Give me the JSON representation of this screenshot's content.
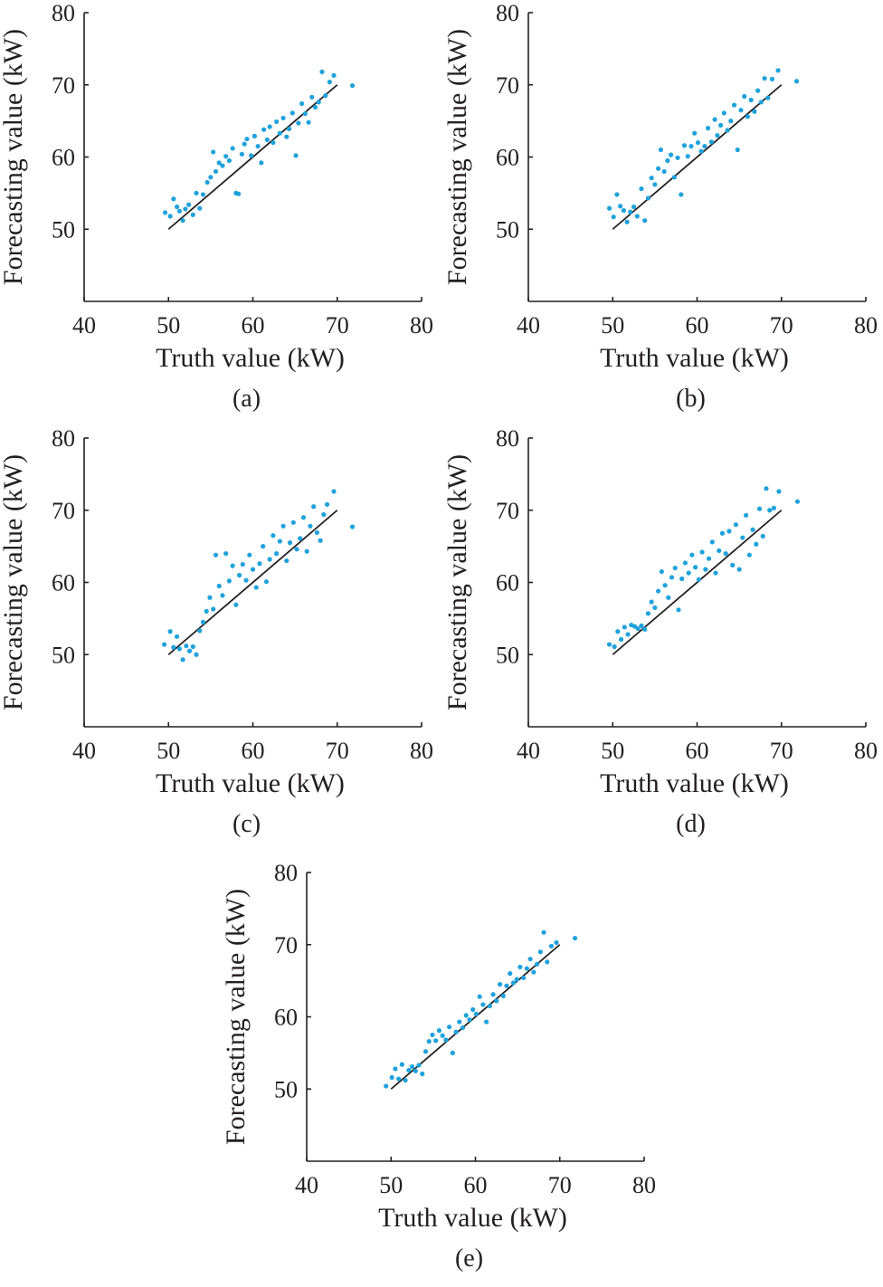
{
  "figure": {
    "panels": [
      {
        "id": "a",
        "label": "(a)"
      },
      {
        "id": "b",
        "label": "(b)"
      },
      {
        "id": "c",
        "label": "(c)"
      },
      {
        "id": "d",
        "label": "(d)"
      },
      {
        "id": "e",
        "label": "(e)"
      }
    ]
  },
  "colors": {
    "points": "#1ea2dc",
    "line": "#231f20",
    "axes": "#231f20"
  },
  "chart_data": [
    {
      "type": "scatter",
      "panel_label": "(a)",
      "xlabel": "Truth value (kW)",
      "ylabel": "Forecasting value (kW)",
      "xlim": [
        40,
        80
      ],
      "ylim": [
        40,
        80
      ],
      "xticks": [
        40,
        50,
        60,
        70,
        80
      ],
      "yticks": [
        50,
        60,
        70,
        80
      ],
      "grid": false,
      "reference_line": {
        "x": [
          50,
          70
        ],
        "y": [
          50,
          70
        ]
      },
      "points": [
        [
          49.6,
          52.3
        ],
        [
          50.2,
          51.8
        ],
        [
          50.6,
          54.2
        ],
        [
          51.0,
          53.1
        ],
        [
          51.3,
          52.5
        ],
        [
          51.7,
          51.2
        ],
        [
          52.0,
          52.8
        ],
        [
          52.4,
          53.4
        ],
        [
          52.9,
          52.0
        ],
        [
          53.3,
          55.0
        ],
        [
          53.7,
          52.9
        ],
        [
          54.1,
          54.8
        ],
        [
          54.6,
          56.5
        ],
        [
          55.0,
          57.2
        ],
        [
          55.3,
          60.7
        ],
        [
          55.6,
          58.0
        ],
        [
          56.0,
          59.2
        ],
        [
          56.4,
          58.8
        ],
        [
          56.8,
          60.1
        ],
        [
          57.2,
          59.5
        ],
        [
          57.6,
          61.2
        ],
        [
          58.0,
          55.0
        ],
        [
          58.3,
          54.9
        ],
        [
          58.7,
          60.4
        ],
        [
          59.0,
          61.8
        ],
        [
          59.3,
          62.5
        ],
        [
          59.8,
          60.2
        ],
        [
          60.2,
          62.9
        ],
        [
          60.6,
          61.5
        ],
        [
          61.0,
          59.2
        ],
        [
          61.3,
          63.8
        ],
        [
          61.7,
          62.4
        ],
        [
          62.0,
          64.2
        ],
        [
          62.4,
          62.0
        ],
        [
          62.8,
          64.9
        ],
        [
          63.2,
          63.3
        ],
        [
          63.6,
          65.4
        ],
        [
          64.0,
          62.8
        ],
        [
          64.3,
          63.9
        ],
        [
          64.7,
          66.1
        ],
        [
          65.1,
          60.2
        ],
        [
          65.4,
          64.7
        ],
        [
          65.8,
          67.4
        ],
        [
          66.2,
          66.0
        ],
        [
          66.6,
          64.8
        ],
        [
          67.0,
          68.3
        ],
        [
          67.4,
          66.9
        ],
        [
          67.8,
          67.6
        ],
        [
          68.2,
          71.8
        ],
        [
          68.6,
          68.5
        ],
        [
          69.1,
          70.4
        ],
        [
          69.6,
          71.3
        ],
        [
          71.8,
          69.9
        ]
      ]
    },
    {
      "type": "scatter",
      "panel_label": "(b)",
      "xlabel": "Truth value (kW)",
      "ylabel": "Forecasting value (kW)",
      "xlim": [
        40,
        80
      ],
      "ylim": [
        40,
        80
      ],
      "xticks": [
        40,
        50,
        60,
        70,
        80
      ],
      "yticks": [
        50,
        60,
        70,
        80
      ],
      "grid": false,
      "reference_line": {
        "x": [
          50,
          70
        ],
        "y": [
          50,
          70
        ]
      },
      "points": [
        [
          49.6,
          52.9
        ],
        [
          50.1,
          51.7
        ],
        [
          50.5,
          54.8
        ],
        [
          50.9,
          53.2
        ],
        [
          51.3,
          52.6
        ],
        [
          51.7,
          51.0
        ],
        [
          52.1,
          52.4
        ],
        [
          52.5,
          53.1
        ],
        [
          52.9,
          51.8
        ],
        [
          53.4,
          55.6
        ],
        [
          53.8,
          51.2
        ],
        [
          54.2,
          54.3
        ],
        [
          54.6,
          57.1
        ],
        [
          55.0,
          56.2
        ],
        [
          55.4,
          58.4
        ],
        [
          55.7,
          61.0
        ],
        [
          56.1,
          58.0
        ],
        [
          56.5,
          59.5
        ],
        [
          56.9,
          60.3
        ],
        [
          57.3,
          57.2
        ],
        [
          57.7,
          59.9
        ],
        [
          58.1,
          54.8
        ],
        [
          58.5,
          61.6
        ],
        [
          58.9,
          60.1
        ],
        [
          59.3,
          61.5
        ],
        [
          59.7,
          63.3
        ],
        [
          60.1,
          62.0
        ],
        [
          60.5,
          60.8
        ],
        [
          60.9,
          61.5
        ],
        [
          61.3,
          64.0
        ],
        [
          61.7,
          62.1
        ],
        [
          62.1,
          65.2
        ],
        [
          62.4,
          63.0
        ],
        [
          62.8,
          64.4
        ],
        [
          63.2,
          66.1
        ],
        [
          63.6,
          63.7
        ],
        [
          64.0,
          65.0
        ],
        [
          64.4,
          67.2
        ],
        [
          64.8,
          61.0
        ],
        [
          65.2,
          66.5
        ],
        [
          65.6,
          68.4
        ],
        [
          66.0,
          65.6
        ],
        [
          66.4,
          67.9
        ],
        [
          66.8,
          66.3
        ],
        [
          67.2,
          69.2
        ],
        [
          67.6,
          67.6
        ],
        [
          68.0,
          70.9
        ],
        [
          68.4,
          68.2
        ],
        [
          68.9,
          70.8
        ],
        [
          69.6,
          72.0
        ],
        [
          71.8,
          70.5
        ]
      ]
    },
    {
      "type": "scatter",
      "panel_label": "(c)",
      "xlabel": "Truth value (kW)",
      "ylabel": "Forecasting value (kW)",
      "xlim": [
        40,
        80
      ],
      "ylim": [
        40,
        80
      ],
      "xticks": [
        40,
        50,
        60,
        70,
        80
      ],
      "yticks": [
        50,
        60,
        70,
        80
      ],
      "grid": false,
      "reference_line": {
        "x": [
          50,
          70
        ],
        "y": [
          50,
          70
        ]
      },
      "points": [
        [
          49.5,
          51.4
        ],
        [
          50.2,
          53.2
        ],
        [
          50.6,
          51.0
        ],
        [
          51.0,
          52.5
        ],
        [
          51.3,
          50.8
        ],
        [
          51.7,
          49.3
        ],
        [
          52.1,
          51.2
        ],
        [
          52.5,
          50.5
        ],
        [
          52.9,
          51.1
        ],
        [
          53.3,
          50.0
        ],
        [
          53.7,
          53.3
        ],
        [
          54.1,
          54.5
        ],
        [
          54.5,
          56.0
        ],
        [
          54.9,
          57.9
        ],
        [
          55.3,
          56.3
        ],
        [
          55.6,
          63.8
        ],
        [
          56.0,
          59.5
        ],
        [
          56.4,
          58.2
        ],
        [
          56.8,
          64.0
        ],
        [
          57.2,
          60.2
        ],
        [
          57.6,
          62.3
        ],
        [
          58.0,
          56.9
        ],
        [
          58.4,
          61.0
        ],
        [
          58.8,
          62.5
        ],
        [
          59.2,
          60.3
        ],
        [
          59.6,
          63.8
        ],
        [
          60.0,
          61.8
        ],
        [
          60.4,
          59.3
        ],
        [
          60.8,
          62.6
        ],
        [
          61.2,
          65.0
        ],
        [
          61.6,
          60.1
        ],
        [
          62.0,
          63.2
        ],
        [
          62.4,
          66.5
        ],
        [
          62.8,
          64.0
        ],
        [
          63.2,
          65.7
        ],
        [
          63.6,
          67.8
        ],
        [
          64.0,
          63.0
        ],
        [
          64.4,
          65.5
        ],
        [
          64.8,
          68.3
        ],
        [
          65.2,
          64.6
        ],
        [
          65.6,
          66.1
        ],
        [
          66.0,
          69.0
        ],
        [
          66.4,
          64.3
        ],
        [
          66.8,
          67.8
        ],
        [
          67.2,
          70.5
        ],
        [
          67.6,
          66.9
        ],
        [
          68.0,
          65.8
        ],
        [
          68.4,
          69.4
        ],
        [
          68.8,
          70.8
        ],
        [
          69.6,
          72.6
        ],
        [
          71.8,
          67.7
        ]
      ]
    },
    {
      "type": "scatter",
      "panel_label": "(d)",
      "xlabel": "Truth value (kW)",
      "ylabel": "Forecasting value (kW)",
      "xlim": [
        40,
        80
      ],
      "ylim": [
        40,
        80
      ],
      "xticks": [
        40,
        50,
        60,
        70,
        80
      ],
      "yticks": [
        50,
        60,
        70,
        80
      ],
      "grid": false,
      "reference_line": {
        "x": [
          50,
          70
        ],
        "y": [
          50,
          70
        ]
      },
      "points": [
        [
          49.6,
          51.4
        ],
        [
          50.2,
          51.1
        ],
        [
          50.6,
          53.2
        ],
        [
          51.0,
          52.1
        ],
        [
          51.4,
          53.8
        ],
        [
          51.8,
          52.8
        ],
        [
          52.2,
          54.1
        ],
        [
          52.6,
          53.9
        ],
        [
          53.0,
          53.6
        ],
        [
          53.4,
          54.0
        ],
        [
          53.8,
          53.5
        ],
        [
          54.2,
          55.7
        ],
        [
          54.6,
          57.3
        ],
        [
          55.0,
          56.5
        ],
        [
          55.4,
          58.8
        ],
        [
          55.8,
          61.5
        ],
        [
          56.2,
          59.6
        ],
        [
          56.6,
          57.9
        ],
        [
          57.0,
          60.7
        ],
        [
          57.4,
          62.0
        ],
        [
          57.8,
          56.2
        ],
        [
          58.2,
          60.5
        ],
        [
          58.6,
          62.7
        ],
        [
          59.0,
          61.3
        ],
        [
          59.4,
          63.8
        ],
        [
          59.8,
          62.1
        ],
        [
          60.2,
          60.4
        ],
        [
          60.6,
          64.2
        ],
        [
          61.0,
          61.8
        ],
        [
          61.4,
          63.3
        ],
        [
          61.8,
          65.6
        ],
        [
          62.2,
          61.3
        ],
        [
          62.6,
          64.4
        ],
        [
          63.0,
          66.8
        ],
        [
          63.4,
          64.0
        ],
        [
          63.8,
          67.1
        ],
        [
          64.2,
          62.4
        ],
        [
          64.6,
          68.0
        ],
        [
          65.0,
          61.8
        ],
        [
          65.4,
          66.2
        ],
        [
          65.8,
          69.3
        ],
        [
          66.2,
          63.8
        ],
        [
          66.6,
          67.3
        ],
        [
          67.0,
          65.3
        ],
        [
          67.4,
          70.2
        ],
        [
          67.8,
          66.4
        ],
        [
          68.2,
          73.0
        ],
        [
          68.6,
          70.0
        ],
        [
          69.1,
          70.3
        ],
        [
          69.7,
          72.6
        ],
        [
          71.9,
          71.2
        ]
      ]
    },
    {
      "type": "scatter",
      "panel_label": "(e)",
      "xlabel": "Truth value (kW)",
      "ylabel": "Forecasting value (kW)",
      "xlim": [
        40,
        80
      ],
      "ylim": [
        40,
        80
      ],
      "xticks": [
        40,
        50,
        60,
        70,
        80
      ],
      "yticks": [
        50,
        60,
        70,
        80
      ],
      "grid": false,
      "reference_line": {
        "x": [
          50,
          70
        ],
        "y": [
          50,
          70
        ]
      },
      "points": [
        [
          49.4,
          50.4
        ],
        [
          50.1,
          51.6
        ],
        [
          50.5,
          52.8
        ],
        [
          50.9,
          51.4
        ],
        [
          51.3,
          53.4
        ],
        [
          51.7,
          51.2
        ],
        [
          52.1,
          52.6
        ],
        [
          52.5,
          53.1
        ],
        [
          52.9,
          52.5
        ],
        [
          53.3,
          53.3
        ],
        [
          53.7,
          52.1
        ],
        [
          54.1,
          55.2
        ],
        [
          54.5,
          56.6
        ],
        [
          54.9,
          57.5
        ],
        [
          55.3,
          56.7
        ],
        [
          55.7,
          58.1
        ],
        [
          56.1,
          57.4
        ],
        [
          56.5,
          56.8
        ],
        [
          56.9,
          58.6
        ],
        [
          57.3,
          55.0
        ],
        [
          57.7,
          57.9
        ],
        [
          58.1,
          59.3
        ],
        [
          58.5,
          58.5
        ],
        [
          58.9,
          60.2
        ],
        [
          59.3,
          59.6
        ],
        [
          59.7,
          61.0
        ],
        [
          60.1,
          60.4
        ],
        [
          60.5,
          62.8
        ],
        [
          60.9,
          61.7
        ],
        [
          61.3,
          59.3
        ],
        [
          61.7,
          61.5
        ],
        [
          62.1,
          63.1
        ],
        [
          62.5,
          62.2
        ],
        [
          62.9,
          64.5
        ],
        [
          63.3,
          62.9
        ],
        [
          63.7,
          64.3
        ],
        [
          64.1,
          66.0
        ],
        [
          64.5,
          64.7
        ],
        [
          64.9,
          65.2
        ],
        [
          65.3,
          66.9
        ],
        [
          65.7,
          65.4
        ],
        [
          66.1,
          66.7
        ],
        [
          66.5,
          68.0
        ],
        [
          66.9,
          66.2
        ],
        [
          67.3,
          67.3
        ],
        [
          67.7,
          69.0
        ],
        [
          68.1,
          71.7
        ],
        [
          68.5,
          67.6
        ],
        [
          69.0,
          69.8
        ],
        [
          69.6,
          70.3
        ],
        [
          71.8,
          70.9
        ]
      ]
    }
  ]
}
